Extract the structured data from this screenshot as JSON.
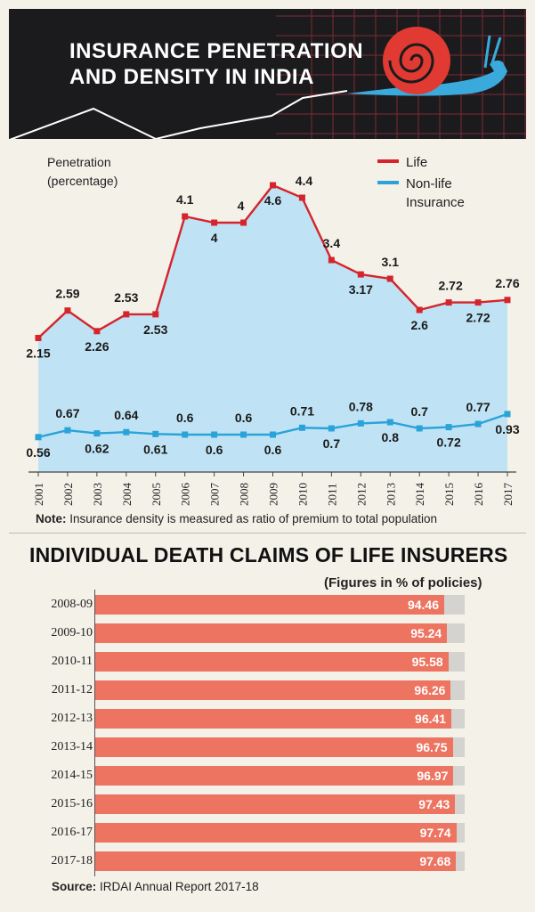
{
  "header": {
    "title": "INSURANCE PENETRATION\nAND DENSITY IN INDIA",
    "background": "#1b1b1e",
    "illustration": "snail-icon"
  },
  "chart_data": [
    {
      "type": "line",
      "ylabel": "Penetration\n(percentage)",
      "x": [
        "2001",
        "2002",
        "2003",
        "2004",
        "2005",
        "2006",
        "2007",
        "2008",
        "2009",
        "2010",
        "2011",
        "2012",
        "2013",
        "2014",
        "2015",
        "2016",
        "2017"
      ],
      "ylim": [
        0,
        5
      ],
      "grid": false,
      "legend_position": "top-right",
      "series": [
        {
          "name": "Life",
          "color": "#d5242b",
          "fill": "#bfe3f4",
          "values": [
            2.15,
            2.59,
            2.26,
            2.53,
            2.53,
            4.1,
            4,
            4,
            4.6,
            4.4,
            3.4,
            3.17,
            3.1,
            2.6,
            2.72,
            2.72,
            2.76
          ]
        },
        {
          "name": "Non-life\nInsurance",
          "color": "#2aa3d9",
          "values": [
            0.56,
            0.67,
            0.62,
            0.64,
            0.61,
            0.6,
            0.6,
            0.6,
            0.6,
            0.71,
            0.7,
            0.78,
            0.8,
            0.7,
            0.72,
            0.77,
            0.93
          ]
        }
      ],
      "note_label": "Note:",
      "note_text": " Insurance density is measured as ratio of premium to total population"
    },
    {
      "type": "bar",
      "title": "INDIVIDUAL DEATH CLAIMS OF LIFE INSURERS",
      "units": "(Figures  in % of policies)",
      "categories": [
        "2008-09",
        "2009-10",
        "2010-11",
        "2011-12",
        "2012-13",
        "2013-14",
        "2014-15",
        "2015-16",
        "2016-17",
        "2017-18"
      ],
      "values": [
        94.46,
        95.24,
        95.58,
        96.26,
        96.41,
        96.75,
        96.97,
        97.43,
        97.74,
        97.68
      ],
      "labels": [
        "94.46",
        "95.24",
        "95.58",
        "96.26",
        "96.41",
        "96.75",
        "96.97",
        "97.43",
        "97.74",
        "97.68"
      ],
      "ylim": [
        0,
        100
      ],
      "bar_color": "#ec7461",
      "track_color": "#d4d3d0",
      "source_label": "Source:",
      "source_text": " IRDAI Annual Report 2017-18"
    }
  ]
}
